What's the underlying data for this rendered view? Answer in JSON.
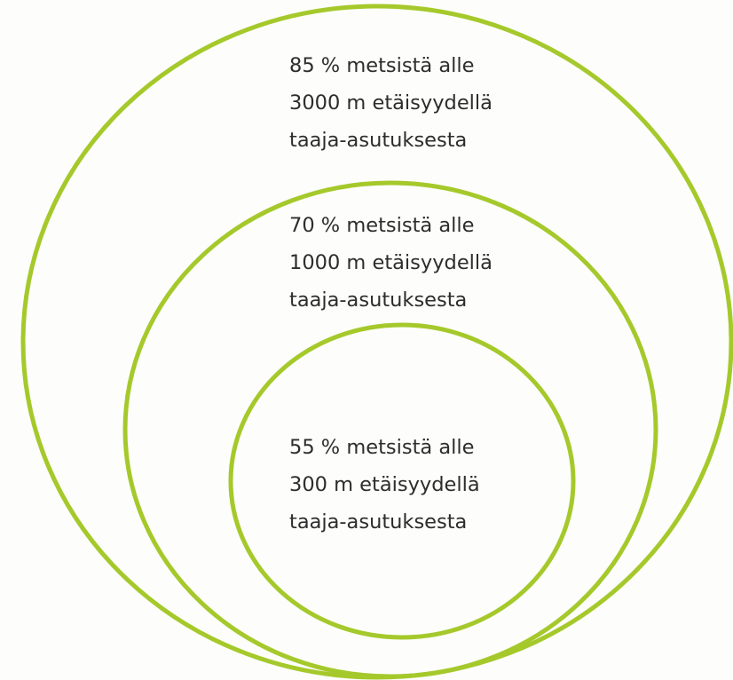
{
  "ring_color": "#a5c92b",
  "rings": {
    "outer": {
      "lines": [
        "85 % metsistä alle",
        "3000 m etäisyydellä",
        "taaja-asutuksesta"
      ]
    },
    "middle": {
      "lines": [
        "70 % metsistä alle",
        "1000 m etäisyydellä",
        "taaja-asutuksesta"
      ]
    },
    "inner": {
      "lines": [
        "55 % metsistä alle",
        "300 m etäisyydellä",
        "taaja-asutuksesta"
      ]
    }
  }
}
